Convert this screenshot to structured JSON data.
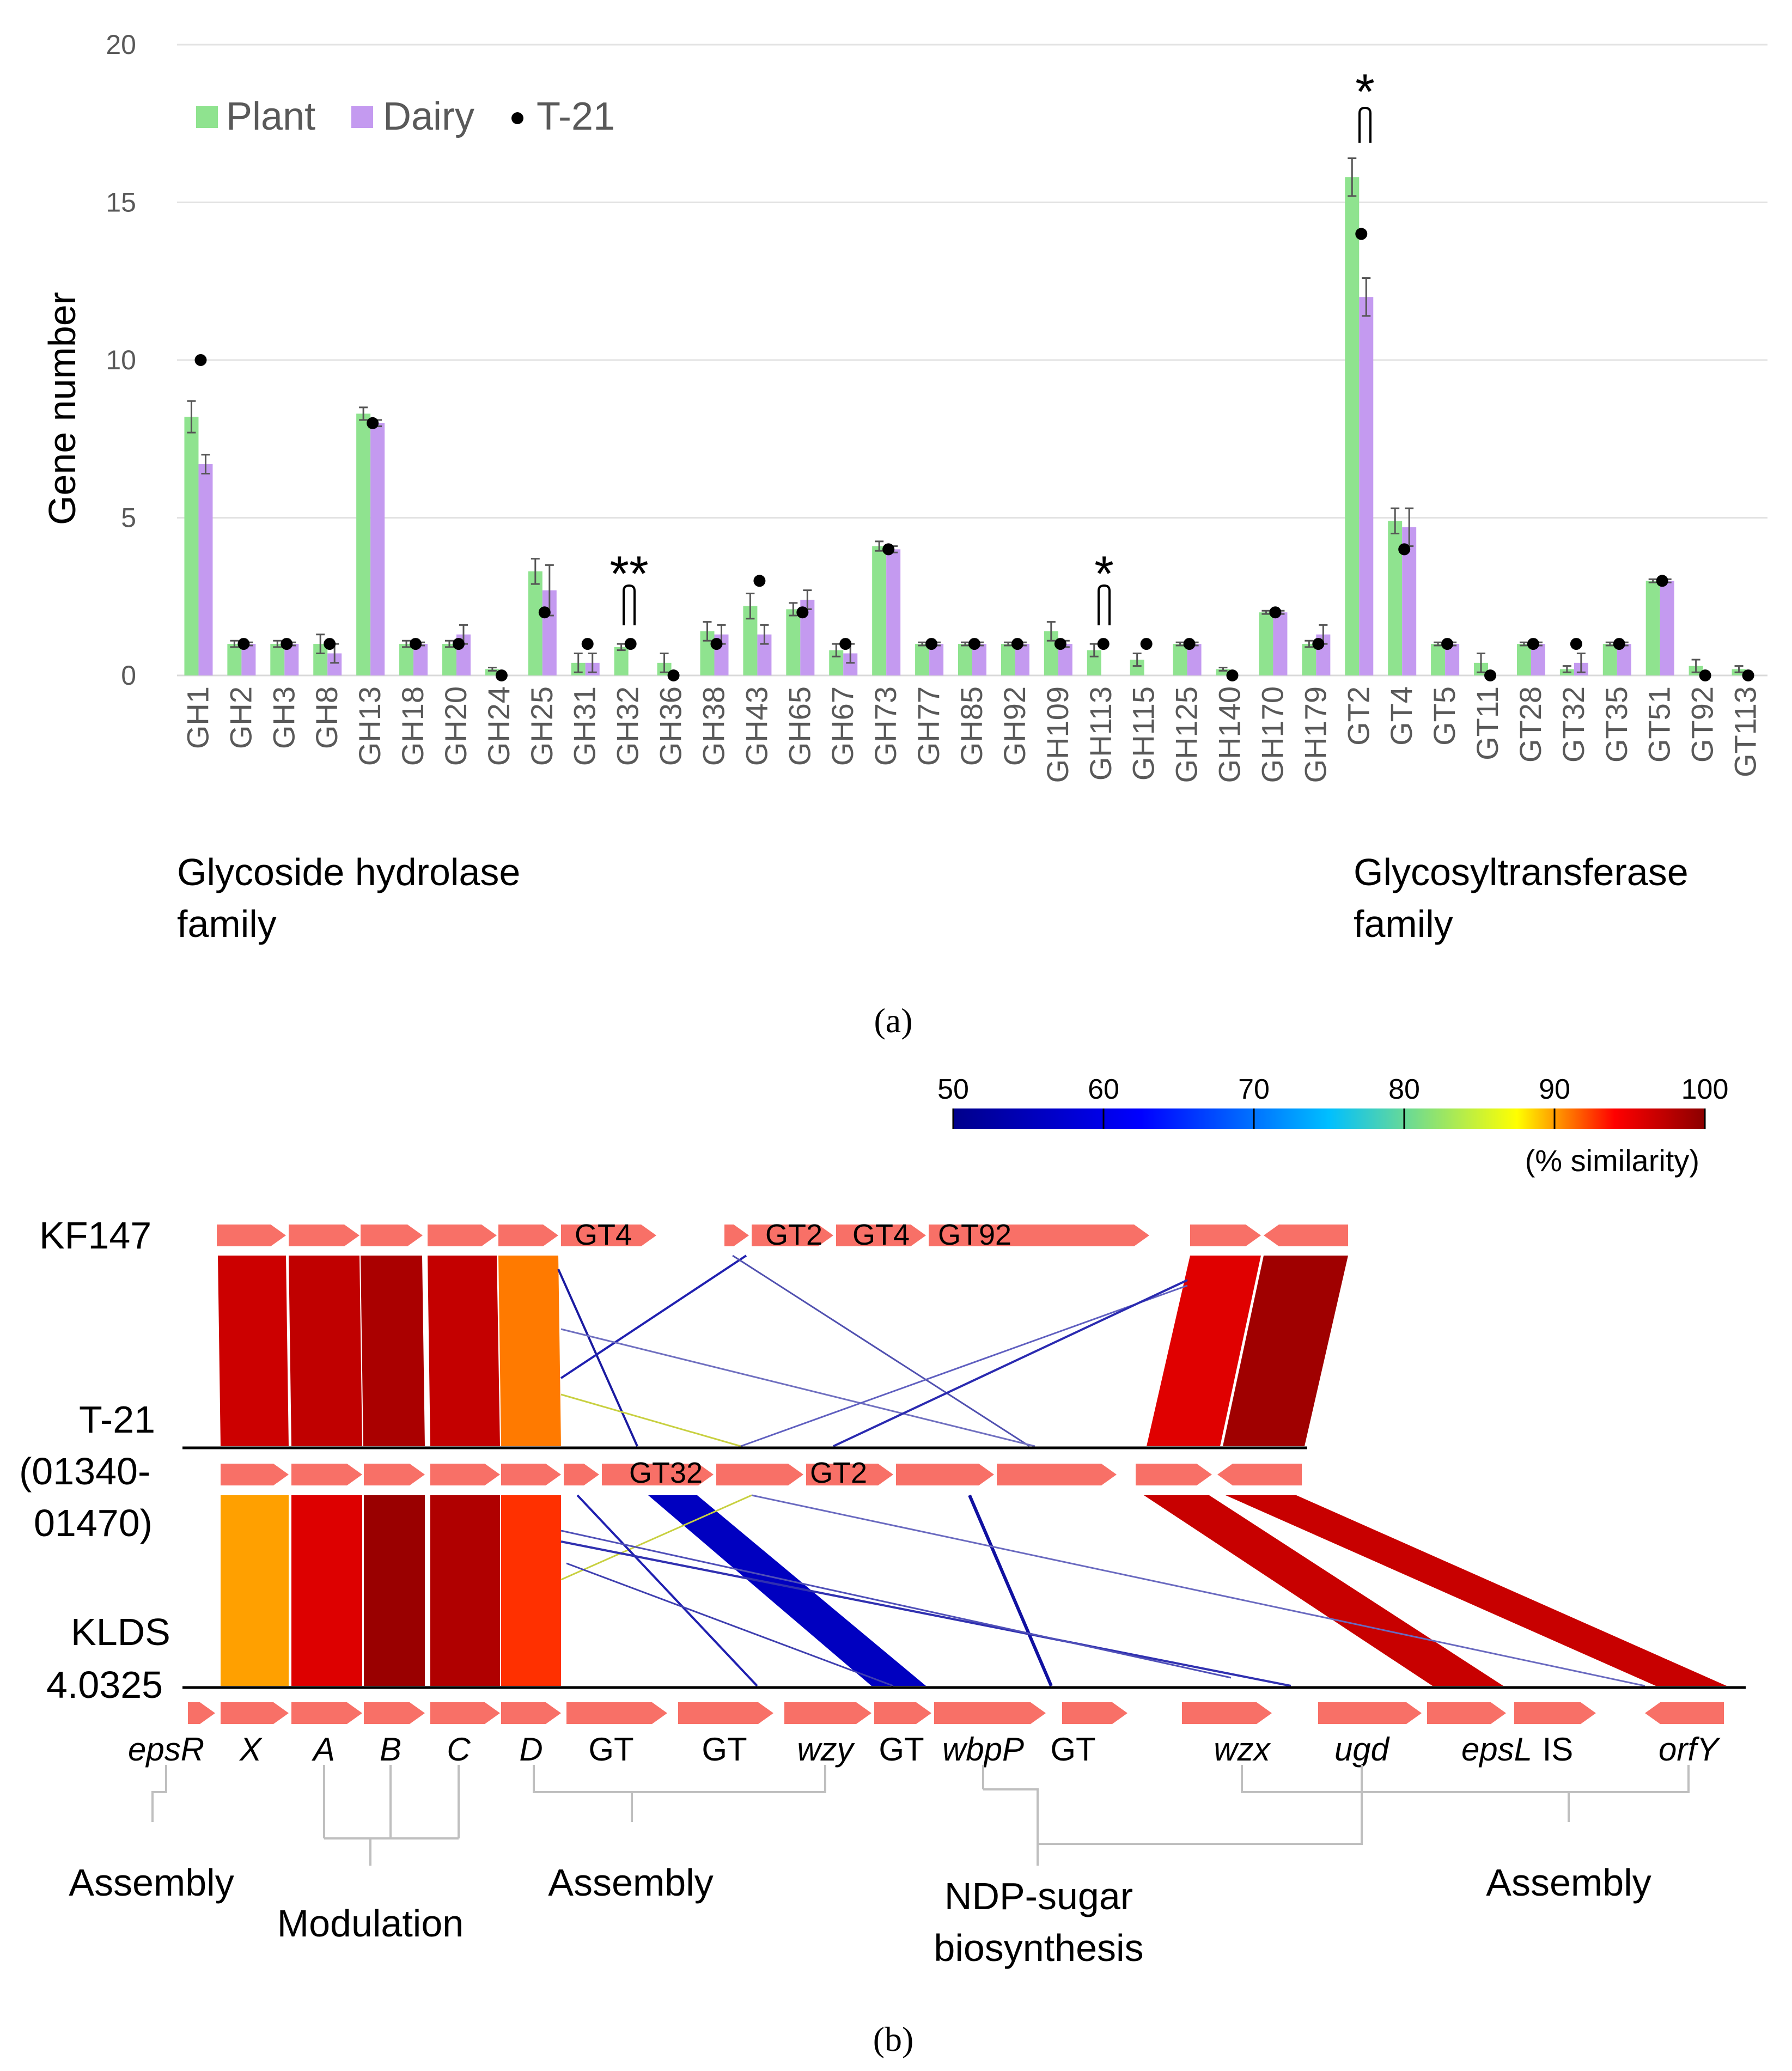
{
  "panel_a": {
    "label": "(a)",
    "legend": [
      {
        "name": "Plant",
        "color": "#8fe38f",
        "kind": "bar"
      },
      {
        "name": "Dairy",
        "color": "#c49af0",
        "kind": "bar"
      },
      {
        "name": "T-21",
        "color": "#000000",
        "kind": "dot"
      }
    ],
    "group_labels": [
      {
        "line1": "Glycoside hydrolase",
        "line2": "family"
      },
      {
        "line1": "Glycosyltransferase",
        "line2": "family"
      }
    ],
    "significance": [
      {
        "category": "GH32",
        "mark": "**"
      },
      {
        "category": "GH113",
        "mark": "*"
      },
      {
        "category": "GT2",
        "mark": "*"
      }
    ]
  },
  "chart_data": {
    "type": "bar",
    "title": "",
    "xlabel": "",
    "ylabel": "Gene number",
    "ylim": [
      0,
      20
    ],
    "yticks": [
      0,
      5,
      10,
      15,
      20
    ],
    "grid": true,
    "legend_position": "top-left",
    "categories": [
      "GH1",
      "GH2",
      "GH3",
      "GH8",
      "GH13",
      "GH18",
      "GH20",
      "GH24",
      "GH25",
      "GH31",
      "GH32",
      "GH36",
      "GH38",
      "GH43",
      "GH65",
      "GH67",
      "GH73",
      "GH77",
      "GH85",
      "GH92",
      "GH109",
      "GH113",
      "GH115",
      "GH125",
      "GH140",
      "GH170",
      "GH179",
      "GT2",
      "GT4",
      "GT5",
      "GT11",
      "GT28",
      "GT32",
      "GT35",
      "GT51",
      "GT92",
      "GT113"
    ],
    "series": [
      {
        "name": "Plant",
        "type": "bar",
        "color": "#8fe38f",
        "values": [
          8.2,
          1,
          1,
          1,
          8.3,
          1,
          1,
          0.2,
          3.3,
          0.4,
          0.9,
          0.4,
          1.4,
          2.2,
          2.1,
          0.8,
          4.1,
          1,
          1,
          1,
          1.4,
          0.8,
          0.5,
          1,
          0.2,
          2,
          1,
          15.8,
          4.9,
          1,
          0.4,
          1,
          0.2,
          1,
          3,
          0.3,
          0.2
        ],
        "errors": [
          0.5,
          0.1,
          0.1,
          0.3,
          0.2,
          0.1,
          0.1,
          0.05,
          0.4,
          0.3,
          0.1,
          0.3,
          0.3,
          0.4,
          0.2,
          0.2,
          0.15,
          0.05,
          0.05,
          0.05,
          0.3,
          0.2,
          0.2,
          0.05,
          0.05,
          0.05,
          0.1,
          0.6,
          0.4,
          0.05,
          0.3,
          0.05,
          0.1,
          0.05,
          0.05,
          0.2,
          0.1
        ]
      },
      {
        "name": "Dairy",
        "type": "bar",
        "color": "#c49af0",
        "values": [
          6.7,
          1,
          1,
          0.7,
          8,
          1,
          1.3,
          0,
          2.7,
          0.4,
          0,
          0,
          1.3,
          1.3,
          2.4,
          0.7,
          4,
          1,
          1,
          1,
          1,
          0,
          0,
          1,
          0,
          2,
          1.3,
          12,
          4.7,
          1,
          0,
          1,
          0.4,
          1,
          3,
          0,
          0
        ],
        "errors": [
          0.3,
          0.05,
          0.05,
          0.3,
          0.1,
          0.05,
          0.3,
          0,
          0.8,
          0.3,
          0,
          0,
          0.3,
          0.3,
          0.3,
          0.3,
          0.1,
          0.05,
          0.05,
          0.05,
          0.1,
          0,
          0,
          0.05,
          0,
          0.05,
          0.3,
          0.6,
          0.6,
          0.05,
          0,
          0.05,
          0.3,
          0.05,
          0.05,
          0,
          0
        ]
      },
      {
        "name": "T-21",
        "type": "scatter",
        "color": "#000000",
        "values": [
          10,
          1,
          1,
          1,
          8,
          1,
          1,
          0,
          2,
          1,
          1,
          0,
          1,
          3,
          2,
          1,
          4,
          1,
          1,
          1,
          1,
          1,
          1,
          1,
          0,
          2,
          1,
          14,
          4,
          1,
          0,
          1,
          1,
          1,
          3,
          0,
          0
        ]
      }
    ]
  },
  "panel_b": {
    "label": "(b)",
    "colorbar": {
      "ticks": [
        "50",
        "60",
        "70",
        "80",
        "90",
        "100"
      ],
      "label": "(% similarity)",
      "colors": [
        "#00008b",
        "#0000ff",
        "#00bfff",
        "#ffff00",
        "#ff0000",
        "#8b0000"
      ]
    },
    "tracks": [
      {
        "name": "KF147"
      },
      {
        "name_lines": [
          "T-21",
          "(01340-",
          "01470)"
        ]
      },
      {
        "name_lines": [
          "KLDS",
          "4.0325"
        ]
      }
    ],
    "kf147_labels": [
      "GT4",
      "GT2",
      "GT4",
      "GT92"
    ],
    "t21_labels": [
      "GT32",
      "GT2"
    ],
    "gene_labels": [
      {
        "text": "epsR",
        "italic": true
      },
      {
        "text": "X",
        "italic": true
      },
      {
        "text": "A",
        "italic": true
      },
      {
        "text": "B",
        "italic": true
      },
      {
        "text": "C",
        "italic": true
      },
      {
        "text": "D",
        "italic": true
      },
      {
        "text": "GT",
        "italic": false
      },
      {
        "text": "GT",
        "italic": false
      },
      {
        "text": "wzy",
        "italic": true
      },
      {
        "text": "GT",
        "italic": false
      },
      {
        "text": "wbpP",
        "italic": true
      },
      {
        "text": "GT",
        "italic": false
      },
      {
        "text": "wzx",
        "italic": true
      },
      {
        "text": "ugd",
        "italic": true
      },
      {
        "text": "epsL",
        "italic": true
      },
      {
        "text": "IS",
        "italic": false
      },
      {
        "text": "orfY",
        "italic": true
      }
    ],
    "functions": [
      {
        "lines": [
          "Assembly"
        ]
      },
      {
        "lines": [
          "Modulation"
        ]
      },
      {
        "lines": [
          "Assembly"
        ]
      },
      {
        "lines": [
          "NDP-sugar",
          "biosynthesis"
        ]
      },
      {
        "lines": [
          "Assembly"
        ]
      }
    ],
    "arrow_color": "#f87067"
  }
}
